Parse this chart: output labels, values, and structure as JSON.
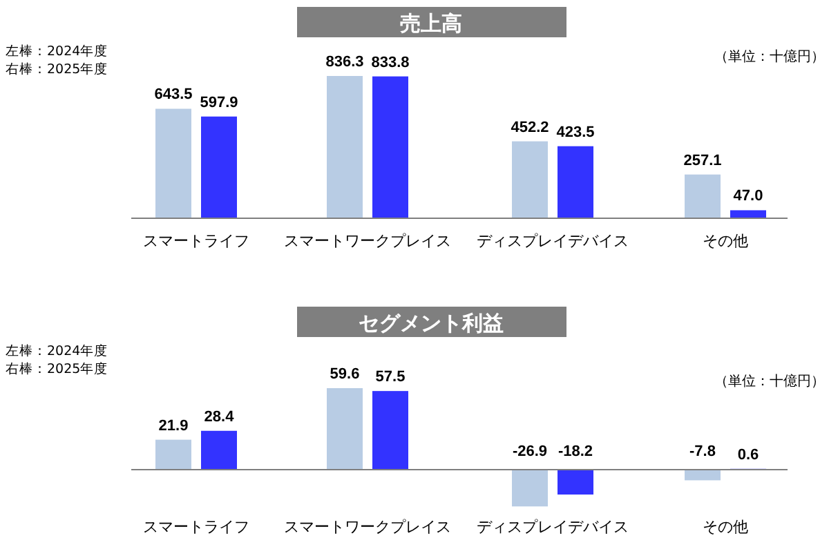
{
  "chart_data": [
    {
      "type": "bar",
      "title": "売上高",
      "categories": [
        "スマートライフ",
        "スマートワークプレイス",
        "ディスプレイデバイス",
        "その他"
      ],
      "series": [
        {
          "color": "#b8cce4",
          "values": [
            643.5,
            836.3,
            452.2,
            257.1
          ],
          "value_labels": [
            "643.5",
            "836.3",
            "452.2",
            "257.1"
          ]
        },
        {
          "color": "#3333ff",
          "values": [
            597.9,
            833.8,
            423.5,
            47.0
          ],
          "value_labels": [
            "597.9",
            "833.8",
            "423.5",
            "47.0"
          ]
        }
      ],
      "annotations": [
        "左棒：2024年度",
        "右棒：2025年度",
        "（単位：十億円）"
      ]
    },
    {
      "type": "bar",
      "title": "セグメント利益",
      "categories": [
        "スマートライフ",
        "スマートワークプレイス",
        "ディスプレイデバイス",
        "その他"
      ],
      "series": [
        {
          "color": "#b8cce4",
          "values": [
            21.9,
            59.6,
            -26.9,
            -7.8
          ],
          "value_labels": [
            "21.9",
            "59.6",
            "-26.9",
            "-7.8"
          ]
        },
        {
          "color": "#3333ff",
          "values": [
            28.4,
            57.5,
            -18.2,
            0.6
          ],
          "value_labels": [
            "28.4",
            "57.5",
            "-18.2",
            "0.6"
          ]
        }
      ],
      "annotations": [
        "左棒：2024年度",
        "右棒：2025年度",
        "（単位：十億円）"
      ]
    }
  ]
}
